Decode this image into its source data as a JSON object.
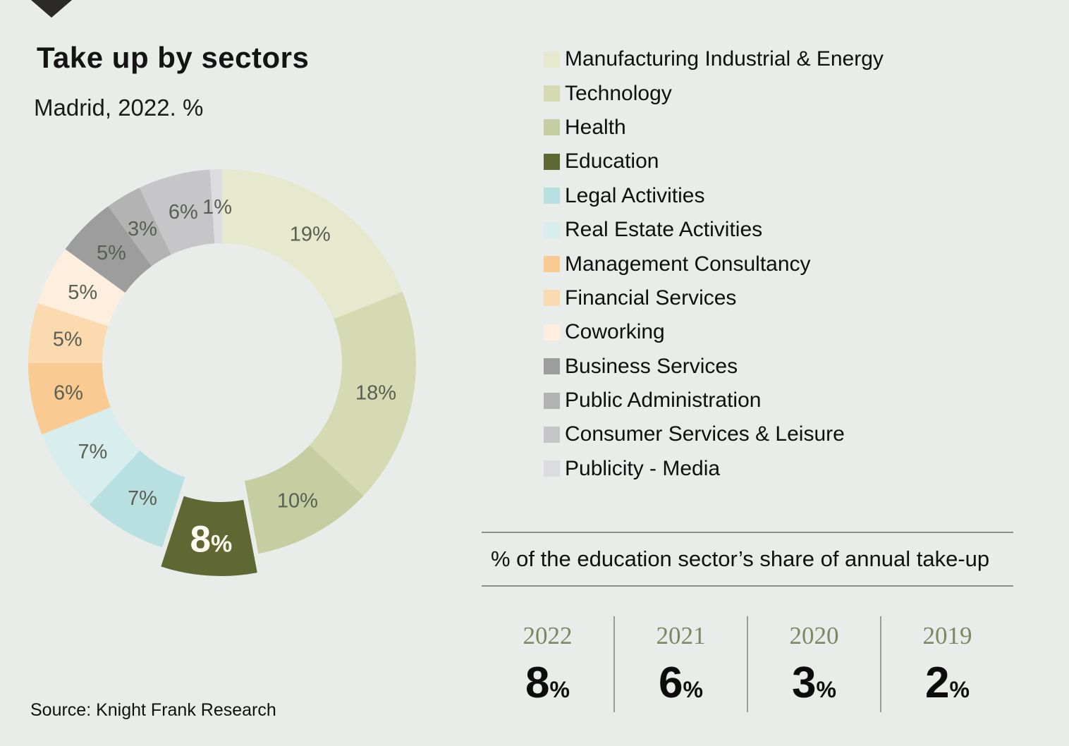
{
  "page": {
    "title": "Take up by sectors",
    "subtitle": "Madrid, 2022. %",
    "source": "Source: Knight Frank Research",
    "background_color": "#e8edea",
    "arrow_color": "#2b2a28"
  },
  "chart_data": {
    "type": "pie",
    "donut": true,
    "title": "Take up by sectors",
    "subtitle": "Madrid, 2022. %",
    "start_angle_deg": 0,
    "direction": "clockwise",
    "slice_label_color": "#5a5f53",
    "emphasized_label_color": "#fdfcf0",
    "slices": [
      {
        "label": "Manufacturing Industrial & Energy",
        "value": 19,
        "display": "19%",
        "color": "#e7e9cf"
      },
      {
        "label": "Technology",
        "value": 18,
        "display": "18%",
        "color": "#d6dab3"
      },
      {
        "label": "Health",
        "value": 10,
        "display": "10%",
        "color": "#c6cda1"
      },
      {
        "label": "Education",
        "value": 8,
        "display": "8%",
        "color": "#5f6733",
        "exploded": true,
        "emphasized": true
      },
      {
        "label": "Legal Activities",
        "value": 7,
        "display": "7%",
        "color": "#b9e0e1"
      },
      {
        "label": "Real Estate Activities",
        "value": 7,
        "display": "7%",
        "color": "#d7edee"
      },
      {
        "label": "Management Consultancy",
        "value": 6,
        "display": "6%",
        "color": "#f9cb93"
      },
      {
        "label": "Financial Services",
        "value": 5,
        "display": "5%",
        "color": "#fbdaaf"
      },
      {
        "label": "Coworking",
        "value": 5,
        "display": "5%",
        "color": "#fdeedd"
      },
      {
        "label": "Business Services",
        "value": 5,
        "display": "5%",
        "color": "#9d9d9d"
      },
      {
        "label": "Public Administration",
        "value": 3,
        "display": "3%",
        "color": "#b3b3b3"
      },
      {
        "label": "Consumer Services & Leisure",
        "value": 6,
        "display": "6%",
        "color": "#c6c5c8"
      },
      {
        "label": "Publicity - Media",
        "value": 1,
        "display": "1%",
        "color": "#dcdce0"
      }
    ]
  },
  "panel": {
    "heading": "% of the education sector’s share of annual take-up",
    "year_color": "#808662",
    "years": [
      {
        "year": "2022",
        "value": "8",
        "unit": "%"
      },
      {
        "year": "2021",
        "value": "6",
        "unit": "%"
      },
      {
        "year": "2020",
        "value": "3",
        "unit": "%"
      },
      {
        "year": "2019",
        "value": "2",
        "unit": "%"
      }
    ]
  }
}
